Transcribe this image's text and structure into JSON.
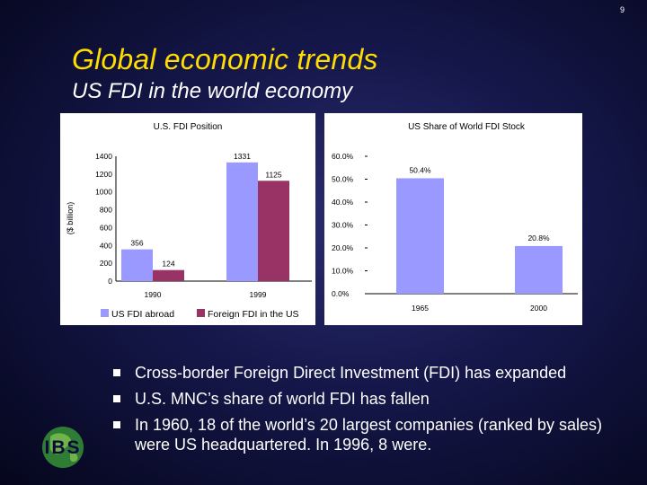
{
  "slide": {
    "page_number": "9",
    "title": "Global economic trends",
    "subtitle": "US FDI in the world economy",
    "bullets": [
      "Cross-border Foreign Direct Investment (FDI) has expanded",
      "U.S. MNC’s share of world FDI has fallen",
      "In 1960, 18 of the world’s 20 largest companies (ranked by sales) were US headquartered.  In 1996, 8 were."
    ],
    "logo_text": "IBS"
  },
  "colors": {
    "title": "#ffdd00",
    "series_abroad": "#9999ff",
    "series_foreign": "#993366",
    "share_bar": "#9999ff"
  },
  "chart_data": [
    {
      "type": "bar",
      "title": "U.S. FDI Position",
      "ylabel": "($ billion)",
      "xlabel": "",
      "categories": [
        "1990",
        "1999"
      ],
      "series": [
        {
          "name": "US FDI abroad",
          "values": [
            356,
            1331
          ],
          "labels": [
            "356",
            "1331"
          ]
        },
        {
          "name": "Foreign FDI in the US",
          "values": [
            124,
            1125
          ],
          "labels": [
            "124",
            "1125"
          ]
        }
      ],
      "ylim": [
        0,
        1400
      ],
      "yticks": [
        "1400",
        "1200",
        "1000",
        "800",
        "600",
        "400",
        "200",
        "0"
      ],
      "legend": "bottom"
    },
    {
      "type": "bar",
      "title": "US Share of World FDI Stock",
      "categories": [
        "1965",
        "2000"
      ],
      "values": [
        50.4,
        20.8
      ],
      "labels": [
        "50.4%",
        "20.8%"
      ],
      "ylim": [
        0,
        60
      ],
      "yticks": [
        "60.0%",
        "50.0%",
        "40.0%",
        "30.0%",
        "20.0%",
        "10.0%",
        "0.0%"
      ],
      "xlabel": "",
      "ylabel": ""
    }
  ]
}
